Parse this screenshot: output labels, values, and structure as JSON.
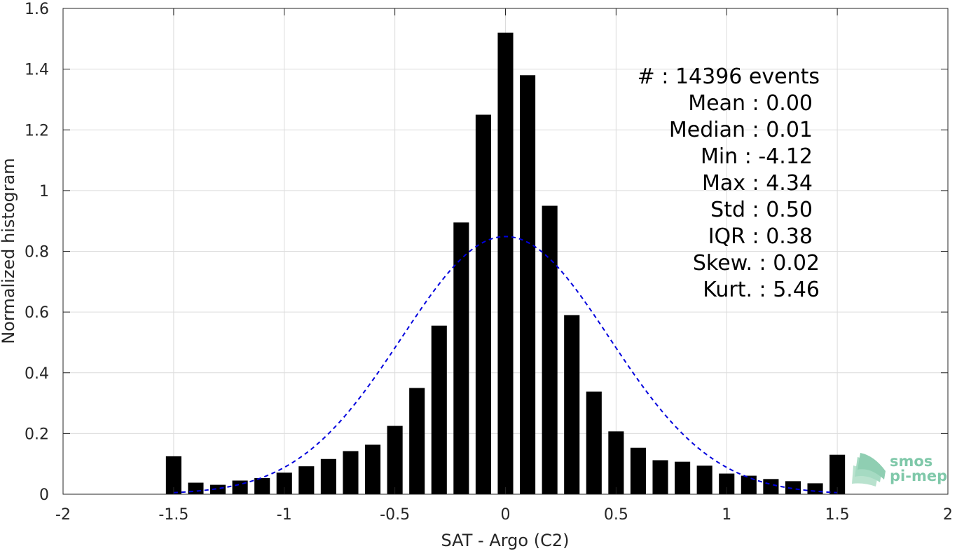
{
  "chart_data": {
    "type": "bar",
    "title": "",
    "xlabel": "SAT - Argo (C2)",
    "ylabel": "Normalized histogram",
    "xlim": [
      -2,
      2
    ],
    "ylim": [
      0,
      1.6
    ],
    "grid": true,
    "x_ticks": [
      -2,
      -1.5,
      -1,
      -0.5,
      0,
      0.5,
      1,
      1.5,
      2
    ],
    "x_tick_labels": [
      "-2",
      "-1.5",
      "-1",
      "-0.5",
      "0",
      "0.5",
      "1",
      "1.5",
      "2"
    ],
    "y_ticks": [
      0,
      0.2,
      0.4,
      0.6,
      0.8,
      1.0,
      1.2,
      1.4,
      1.6
    ],
    "y_tick_labels": [
      "0",
      "0.2",
      "0.4",
      "0.6",
      "0.8",
      "1",
      "1.2",
      "1.4",
      "1.6"
    ],
    "bar_width": 0.07,
    "bars": {
      "x": [
        -1.5,
        -1.4,
        -1.3,
        -1.2,
        -1.1,
        -1.0,
        -0.9,
        -0.8,
        -0.7,
        -0.6,
        -0.5,
        -0.4,
        -0.3,
        -0.2,
        -0.1,
        0.0,
        0.1,
        0.2,
        0.3,
        0.4,
        0.5,
        0.6,
        0.7,
        0.8,
        0.9,
        1.0,
        1.1,
        1.2,
        1.3,
        1.4,
        1.5
      ],
      "values": [
        0.125,
        0.038,
        0.031,
        0.045,
        0.053,
        0.071,
        0.092,
        0.116,
        0.142,
        0.163,
        0.225,
        0.35,
        0.555,
        0.895,
        1.25,
        1.52,
        1.38,
        0.95,
        0.59,
        0.338,
        0.207,
        0.153,
        0.112,
        0.107,
        0.094,
        0.068,
        0.061,
        0.05,
        0.043,
        0.036,
        0.13
      ],
      "color": "#000000"
    },
    "fit_curve": {
      "style": "dashed",
      "color": "#0000dd",
      "mean": 0.0,
      "std": 0.47,
      "x_range": [
        -1.5,
        1.5
      ]
    },
    "annotations": [
      "#  : 14396 events",
      "Mean : 0.00",
      "Median : 0.01",
      "Min : -4.12",
      "Max : 4.34",
      "Std : 0.50",
      "IQR : 0.38",
      "Skew. : 0.02",
      "Kurt. : 5.46"
    ]
  },
  "logo": {
    "line1": "smos",
    "line2": "pi-mep",
    "color": "#7fc8a9"
  }
}
